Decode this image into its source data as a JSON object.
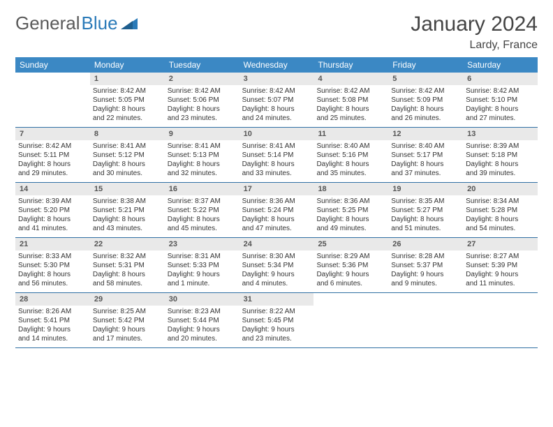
{
  "logo": {
    "text1": "General",
    "text2": "Blue"
  },
  "title": "January 2024",
  "location": "Lardy, France",
  "colors": {
    "header_bg": "#3b88c4",
    "daynum_bg": "#e9e9e9",
    "week_border": "#2f6fa3",
    "logo_gray": "#5a5a5a",
    "logo_blue": "#2a7ab8"
  },
  "weekdays": [
    "Sunday",
    "Monday",
    "Tuesday",
    "Wednesday",
    "Thursday",
    "Friday",
    "Saturday"
  ],
  "weeks": [
    [
      {
        "day": "",
        "sunrise": "",
        "sunset": "",
        "daylight1": "",
        "daylight2": ""
      },
      {
        "day": "1",
        "sunrise": "Sunrise: 8:42 AM",
        "sunset": "Sunset: 5:05 PM",
        "daylight1": "Daylight: 8 hours",
        "daylight2": "and 22 minutes."
      },
      {
        "day": "2",
        "sunrise": "Sunrise: 8:42 AM",
        "sunset": "Sunset: 5:06 PM",
        "daylight1": "Daylight: 8 hours",
        "daylight2": "and 23 minutes."
      },
      {
        "day": "3",
        "sunrise": "Sunrise: 8:42 AM",
        "sunset": "Sunset: 5:07 PM",
        "daylight1": "Daylight: 8 hours",
        "daylight2": "and 24 minutes."
      },
      {
        "day": "4",
        "sunrise": "Sunrise: 8:42 AM",
        "sunset": "Sunset: 5:08 PM",
        "daylight1": "Daylight: 8 hours",
        "daylight2": "and 25 minutes."
      },
      {
        "day": "5",
        "sunrise": "Sunrise: 8:42 AM",
        "sunset": "Sunset: 5:09 PM",
        "daylight1": "Daylight: 8 hours",
        "daylight2": "and 26 minutes."
      },
      {
        "day": "6",
        "sunrise": "Sunrise: 8:42 AM",
        "sunset": "Sunset: 5:10 PM",
        "daylight1": "Daylight: 8 hours",
        "daylight2": "and 27 minutes."
      }
    ],
    [
      {
        "day": "7",
        "sunrise": "Sunrise: 8:42 AM",
        "sunset": "Sunset: 5:11 PM",
        "daylight1": "Daylight: 8 hours",
        "daylight2": "and 29 minutes."
      },
      {
        "day": "8",
        "sunrise": "Sunrise: 8:41 AM",
        "sunset": "Sunset: 5:12 PM",
        "daylight1": "Daylight: 8 hours",
        "daylight2": "and 30 minutes."
      },
      {
        "day": "9",
        "sunrise": "Sunrise: 8:41 AM",
        "sunset": "Sunset: 5:13 PM",
        "daylight1": "Daylight: 8 hours",
        "daylight2": "and 32 minutes."
      },
      {
        "day": "10",
        "sunrise": "Sunrise: 8:41 AM",
        "sunset": "Sunset: 5:14 PM",
        "daylight1": "Daylight: 8 hours",
        "daylight2": "and 33 minutes."
      },
      {
        "day": "11",
        "sunrise": "Sunrise: 8:40 AM",
        "sunset": "Sunset: 5:16 PM",
        "daylight1": "Daylight: 8 hours",
        "daylight2": "and 35 minutes."
      },
      {
        "day": "12",
        "sunrise": "Sunrise: 8:40 AM",
        "sunset": "Sunset: 5:17 PM",
        "daylight1": "Daylight: 8 hours",
        "daylight2": "and 37 minutes."
      },
      {
        "day": "13",
        "sunrise": "Sunrise: 8:39 AM",
        "sunset": "Sunset: 5:18 PM",
        "daylight1": "Daylight: 8 hours",
        "daylight2": "and 39 minutes."
      }
    ],
    [
      {
        "day": "14",
        "sunrise": "Sunrise: 8:39 AM",
        "sunset": "Sunset: 5:20 PM",
        "daylight1": "Daylight: 8 hours",
        "daylight2": "and 41 minutes."
      },
      {
        "day": "15",
        "sunrise": "Sunrise: 8:38 AM",
        "sunset": "Sunset: 5:21 PM",
        "daylight1": "Daylight: 8 hours",
        "daylight2": "and 43 minutes."
      },
      {
        "day": "16",
        "sunrise": "Sunrise: 8:37 AM",
        "sunset": "Sunset: 5:22 PM",
        "daylight1": "Daylight: 8 hours",
        "daylight2": "and 45 minutes."
      },
      {
        "day": "17",
        "sunrise": "Sunrise: 8:36 AM",
        "sunset": "Sunset: 5:24 PM",
        "daylight1": "Daylight: 8 hours",
        "daylight2": "and 47 minutes."
      },
      {
        "day": "18",
        "sunrise": "Sunrise: 8:36 AM",
        "sunset": "Sunset: 5:25 PM",
        "daylight1": "Daylight: 8 hours",
        "daylight2": "and 49 minutes."
      },
      {
        "day": "19",
        "sunrise": "Sunrise: 8:35 AM",
        "sunset": "Sunset: 5:27 PM",
        "daylight1": "Daylight: 8 hours",
        "daylight2": "and 51 minutes."
      },
      {
        "day": "20",
        "sunrise": "Sunrise: 8:34 AM",
        "sunset": "Sunset: 5:28 PM",
        "daylight1": "Daylight: 8 hours",
        "daylight2": "and 54 minutes."
      }
    ],
    [
      {
        "day": "21",
        "sunrise": "Sunrise: 8:33 AM",
        "sunset": "Sunset: 5:30 PM",
        "daylight1": "Daylight: 8 hours",
        "daylight2": "and 56 minutes."
      },
      {
        "day": "22",
        "sunrise": "Sunrise: 8:32 AM",
        "sunset": "Sunset: 5:31 PM",
        "daylight1": "Daylight: 8 hours",
        "daylight2": "and 58 minutes."
      },
      {
        "day": "23",
        "sunrise": "Sunrise: 8:31 AM",
        "sunset": "Sunset: 5:33 PM",
        "daylight1": "Daylight: 9 hours",
        "daylight2": "and 1 minute."
      },
      {
        "day": "24",
        "sunrise": "Sunrise: 8:30 AM",
        "sunset": "Sunset: 5:34 PM",
        "daylight1": "Daylight: 9 hours",
        "daylight2": "and 4 minutes."
      },
      {
        "day": "25",
        "sunrise": "Sunrise: 8:29 AM",
        "sunset": "Sunset: 5:36 PM",
        "daylight1": "Daylight: 9 hours",
        "daylight2": "and 6 minutes."
      },
      {
        "day": "26",
        "sunrise": "Sunrise: 8:28 AM",
        "sunset": "Sunset: 5:37 PM",
        "daylight1": "Daylight: 9 hours",
        "daylight2": "and 9 minutes."
      },
      {
        "day": "27",
        "sunrise": "Sunrise: 8:27 AM",
        "sunset": "Sunset: 5:39 PM",
        "daylight1": "Daylight: 9 hours",
        "daylight2": "and 11 minutes."
      }
    ],
    [
      {
        "day": "28",
        "sunrise": "Sunrise: 8:26 AM",
        "sunset": "Sunset: 5:41 PM",
        "daylight1": "Daylight: 9 hours",
        "daylight2": "and 14 minutes."
      },
      {
        "day": "29",
        "sunrise": "Sunrise: 8:25 AM",
        "sunset": "Sunset: 5:42 PM",
        "daylight1": "Daylight: 9 hours",
        "daylight2": "and 17 minutes."
      },
      {
        "day": "30",
        "sunrise": "Sunrise: 8:23 AM",
        "sunset": "Sunset: 5:44 PM",
        "daylight1": "Daylight: 9 hours",
        "daylight2": "and 20 minutes."
      },
      {
        "day": "31",
        "sunrise": "Sunrise: 8:22 AM",
        "sunset": "Sunset: 5:45 PM",
        "daylight1": "Daylight: 9 hours",
        "daylight2": "and 23 minutes."
      },
      {
        "day": "",
        "sunrise": "",
        "sunset": "",
        "daylight1": "",
        "daylight2": ""
      },
      {
        "day": "",
        "sunrise": "",
        "sunset": "",
        "daylight1": "",
        "daylight2": ""
      },
      {
        "day": "",
        "sunrise": "",
        "sunset": "",
        "daylight1": "",
        "daylight2": ""
      }
    ]
  ]
}
